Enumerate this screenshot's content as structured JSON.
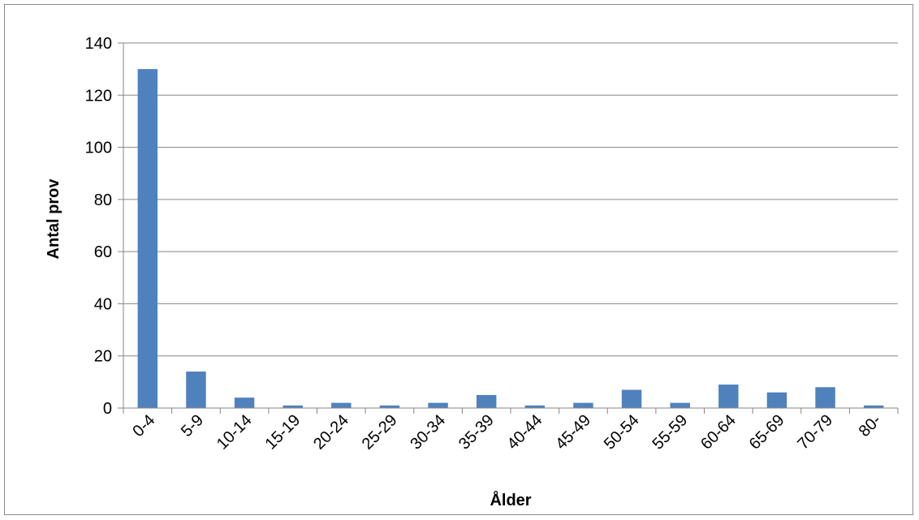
{
  "chart_data": {
    "type": "bar",
    "title": "",
    "xlabel": "Ålder",
    "ylabel": "Antal prov",
    "categories": [
      "0-4",
      "5-9",
      "10-14",
      "15-19",
      "20-24",
      "25-29",
      "30-34",
      "35-39",
      "40-44",
      "45-49",
      "50-54",
      "55-59",
      "60-64",
      "65-69",
      "70-79",
      "80-"
    ],
    "values": [
      130,
      14,
      4,
      1,
      2,
      1,
      2,
      5,
      1,
      2,
      7,
      2,
      9,
      6,
      8,
      1
    ],
    "ylim": [
      0,
      140
    ],
    "yticks": [
      0,
      20,
      40,
      60,
      80,
      100,
      120,
      140
    ],
    "grid": true,
    "legend": "none",
    "colors": {
      "bar": "#4f81bd",
      "grid": "#868686",
      "axis": "#868686"
    }
  }
}
